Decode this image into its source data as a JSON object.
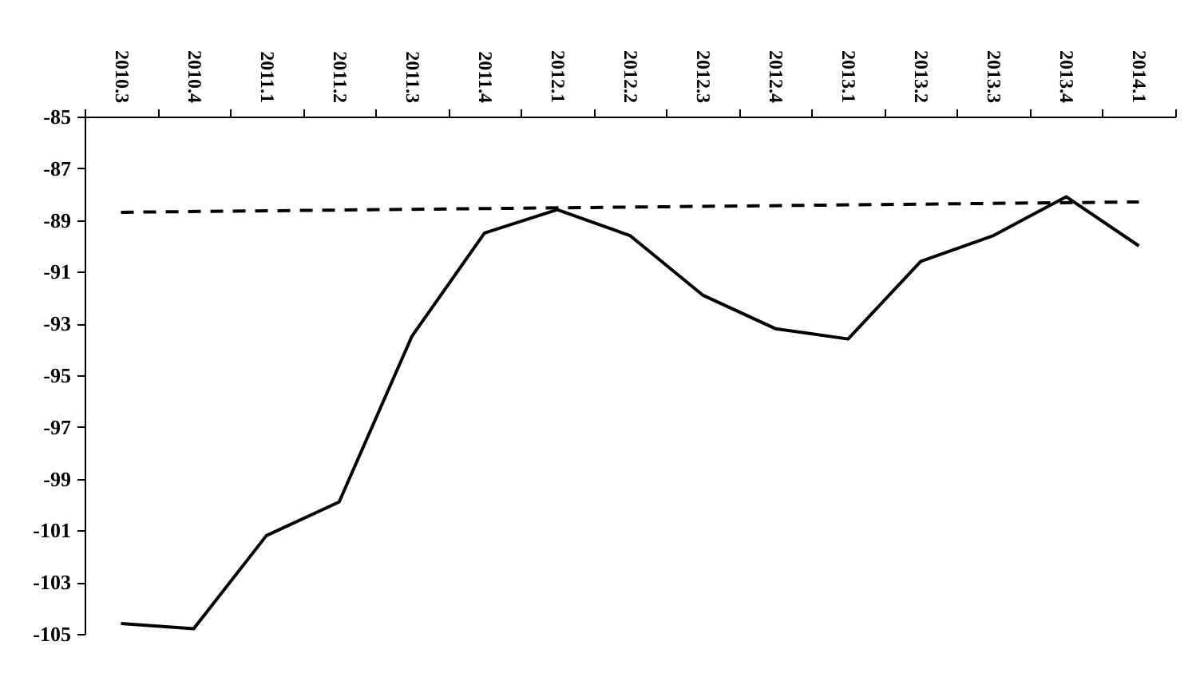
{
  "chart_data": {
    "type": "line",
    "categories": [
      "2010.3",
      "2010.4",
      "2011.1",
      "2011.2",
      "2011.3",
      "2011.4",
      "2012.1",
      "2012.2",
      "2012.3",
      "2012.4",
      "2013.1",
      "2013.2",
      "2013.3",
      "2013.4",
      "2014.1"
    ],
    "series": [
      {
        "color": "#000000",
        "line_style": "solid",
        "values": [
          -104.6,
          -104.8,
          -101.2,
          -99.9,
          -93.5,
          -89.5,
          -88.6,
          -89.6,
          -91.9,
          -93.2,
          -93.6,
          -90.6,
          -89.6,
          -88.1,
          -90.0
        ]
      },
      {
        "type": "line",
        "color": "#000000",
        "line_style": "dashed",
        "x": [
          "2010.3",
          "2014.1"
        ],
        "values": [
          -88.7,
          -88.3
        ]
      }
    ],
    "ylim": [
      -105,
      -85
    ],
    "yticks": [
      -105,
      -103,
      -101,
      -99,
      -97,
      -95,
      -93,
      -91,
      -89,
      -87,
      -85
    ],
    "grid": false,
    "marker": "none"
  }
}
